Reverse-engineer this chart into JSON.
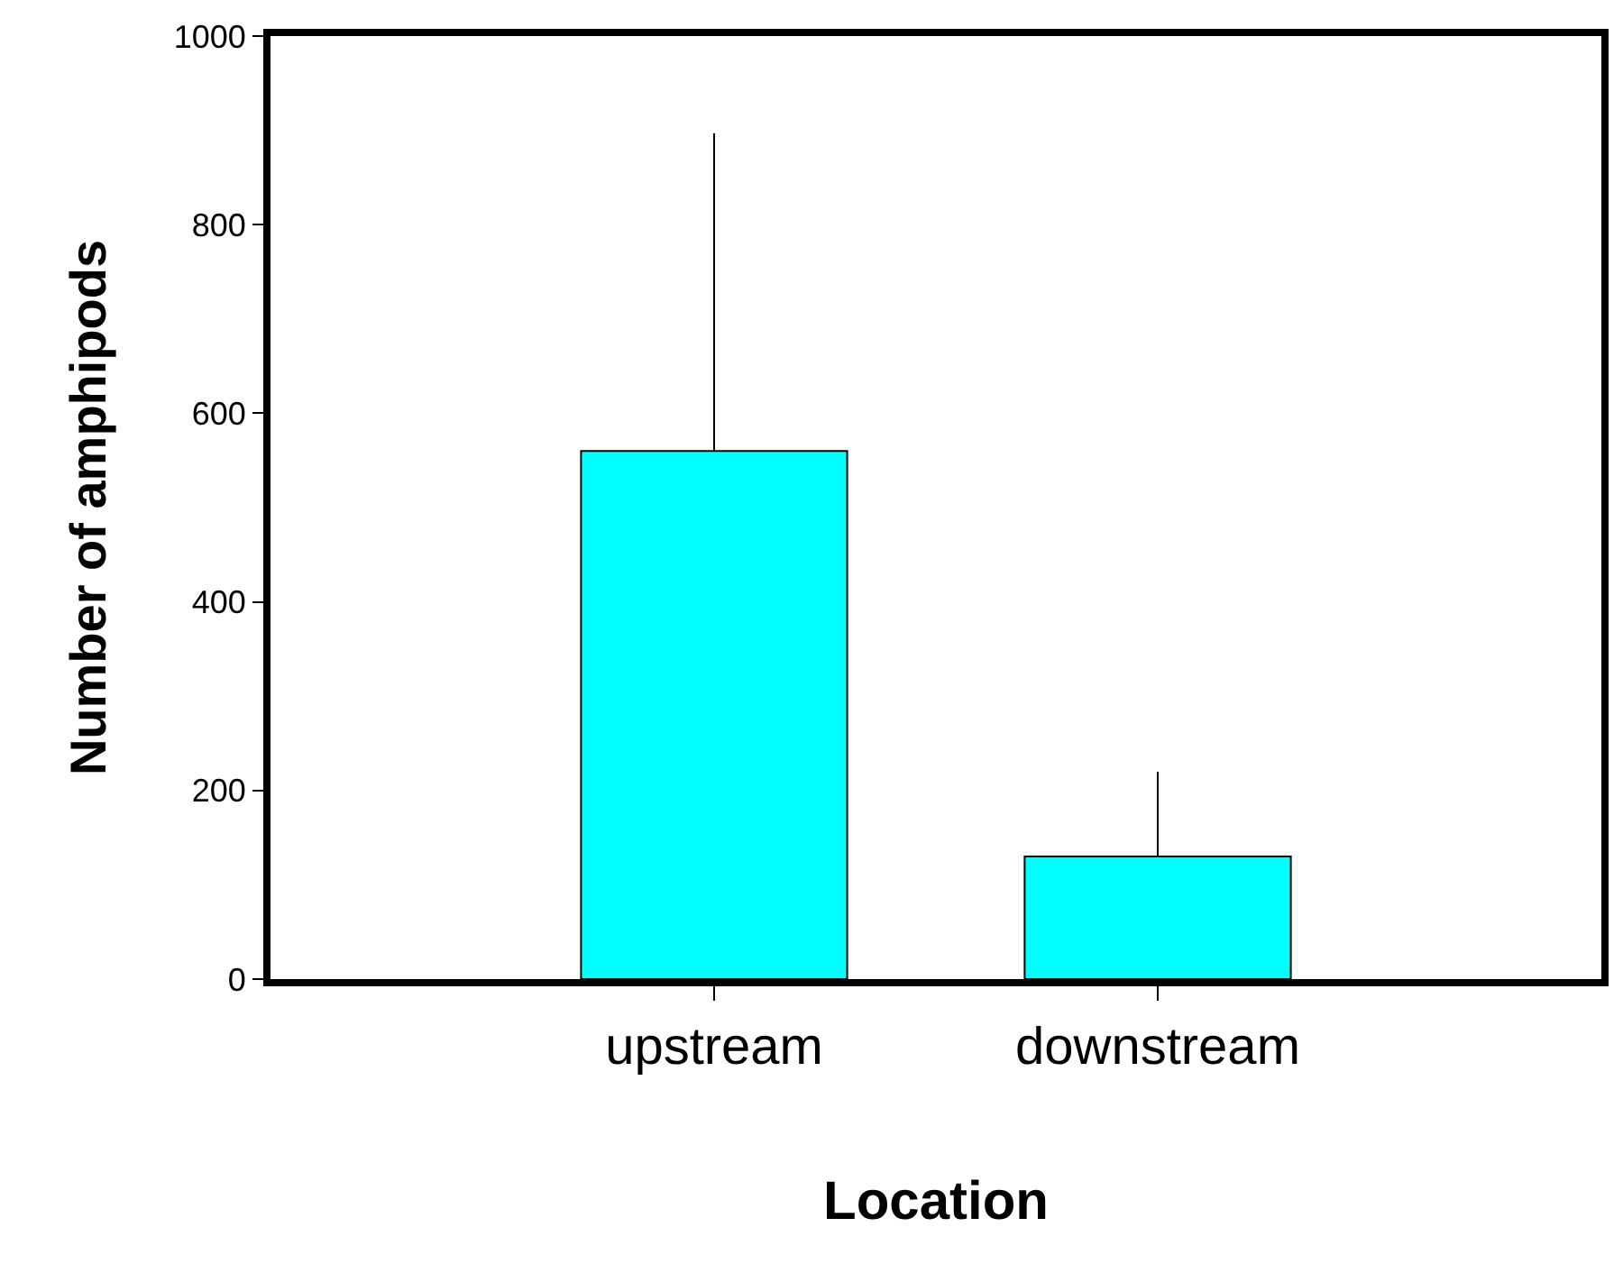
{
  "chart_data": {
    "type": "bar",
    "categories": [
      "upstream",
      "downstream"
    ],
    "values": [
      560,
      130
    ],
    "errors": [
      [
        560,
        897
      ],
      [
        130,
        220
      ]
    ],
    "color": "#00ffff",
    "xlabel": "Location",
    "ylabel": "Number of amphipods",
    "ylim": [
      0,
      1000
    ],
    "yticks": [
      0,
      200,
      400,
      600,
      800,
      1000
    ]
  }
}
